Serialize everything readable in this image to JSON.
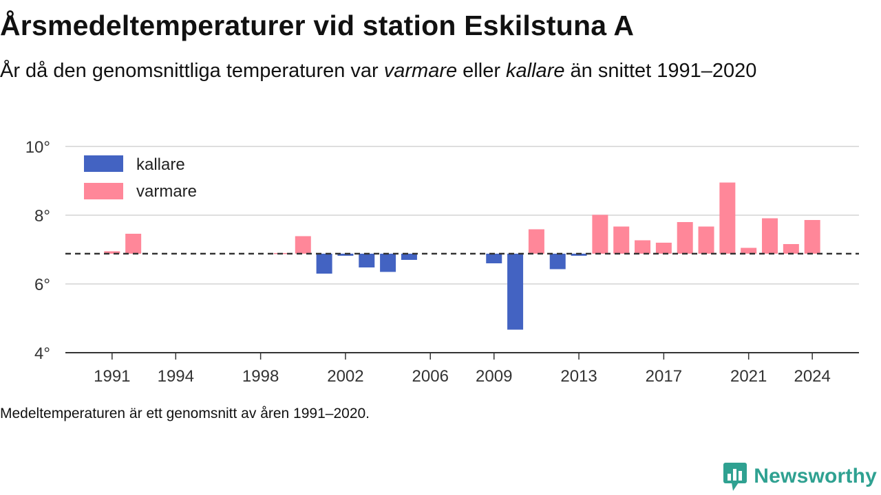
{
  "title": "Årsmedeltemperaturer vid station Eskilstuna A",
  "subtitle": {
    "part1": "År då den genomsnittliga temperaturen var ",
    "warm_word": "varmare",
    "part2": " eller ",
    "cold_word": "kallare",
    "part3": " än snittet 1991–2020"
  },
  "footnote": "Medeltemperaturen är ett genomsnitt av åren 1991–2020.",
  "brand": {
    "name": "Newsworthy"
  },
  "colors": {
    "cold": "#4363c2",
    "warm": "#ff8799",
    "grid": "#dedede",
    "baseline": "#333333",
    "axis_text": "#333333",
    "brand": "#2fa191"
  },
  "chart_data": {
    "type": "bar",
    "baseline": 6.88,
    "ylim": [
      4,
      10
    ],
    "xlim": [
      1988.8,
      2026.2
    ],
    "yticks": [
      4,
      6,
      8,
      10
    ],
    "ytick_suffix": "°",
    "xticks": [
      1991,
      1994,
      1998,
      2002,
      2006,
      2009,
      2013,
      2017,
      2021,
      2024
    ],
    "legend": {
      "position": "top-left",
      "entries": [
        "kallare",
        "varmare"
      ]
    },
    "grid": true,
    "series": [
      {
        "name": "kallare",
        "color": "#4363c2",
        "points": [
          {
            "year": 2001,
            "value": 6.3
          },
          {
            "year": 2002,
            "value": 6.82
          },
          {
            "year": 2003,
            "value": 6.48
          },
          {
            "year": 2004,
            "value": 6.35
          },
          {
            "year": 2005,
            "value": 6.7
          },
          {
            "year": 2009,
            "value": 6.6
          },
          {
            "year": 2010,
            "value": 4.67
          },
          {
            "year": 2012,
            "value": 6.43
          },
          {
            "year": 2013,
            "value": 6.82
          }
        ]
      },
      {
        "name": "varmare",
        "color": "#ff8799",
        "points": [
          {
            "year": 1991,
            "value": 6.95
          },
          {
            "year": 1992,
            "value": 7.46
          },
          {
            "year": 1999,
            "value": 6.9
          },
          {
            "year": 2000,
            "value": 7.39
          },
          {
            "year": 2011,
            "value": 7.59
          },
          {
            "year": 2014,
            "value": 8.01
          },
          {
            "year": 2015,
            "value": 7.67
          },
          {
            "year": 2016,
            "value": 7.27
          },
          {
            "year": 2017,
            "value": 7.2
          },
          {
            "year": 2018,
            "value": 7.8
          },
          {
            "year": 2019,
            "value": 7.67
          },
          {
            "year": 2020,
            "value": 8.95
          },
          {
            "year": 2021,
            "value": 7.05
          },
          {
            "year": 2022,
            "value": 7.91
          },
          {
            "year": 2023,
            "value": 7.16
          },
          {
            "year": 2024,
            "value": 7.86
          }
        ]
      }
    ]
  }
}
